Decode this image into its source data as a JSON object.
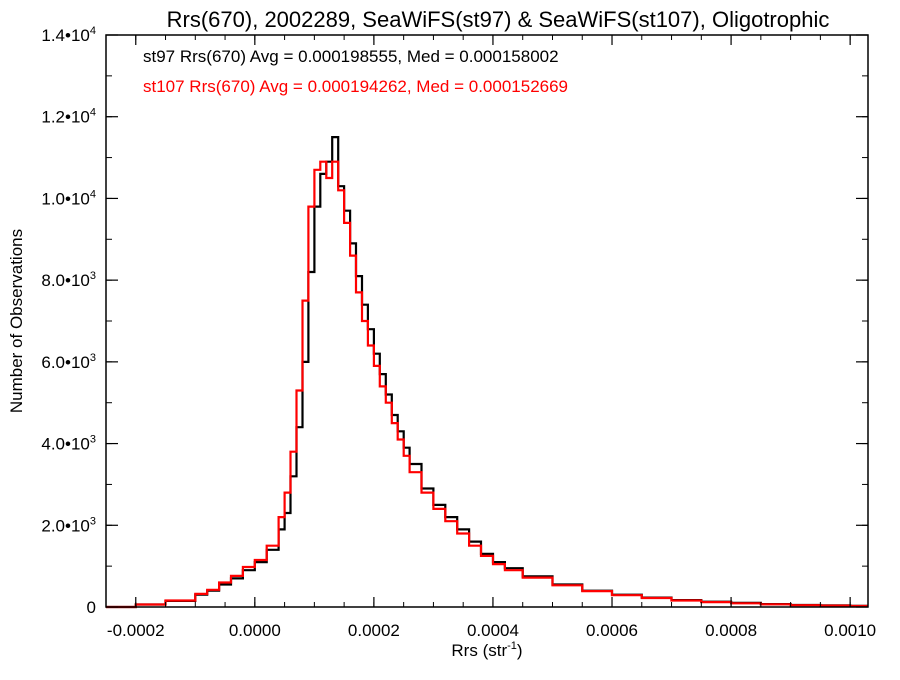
{
  "chart_data": {
    "type": "histogram-step",
    "title": "Rrs(670), 2002289, SeaWiFS(st97) & SeaWiFS(st107), Oligotrophic",
    "xlabel_main": "Rrs (str",
    "xlabel_sup": "-1",
    "xlabel_end": ")",
    "ylabel": "Number of Observations",
    "xlim": [
      -0.00025,
      0.00103
    ],
    "ylim": [
      0,
      14000
    ],
    "x_ticks": [
      {
        "value": -0.0002,
        "label": "-0.0002"
      },
      {
        "value": 0.0,
        "label": "0.0000"
      },
      {
        "value": 0.0002,
        "label": "0.0002"
      },
      {
        "value": 0.0004,
        "label": "0.0004"
      },
      {
        "value": 0.0006,
        "label": "0.0006"
      },
      {
        "value": 0.0008,
        "label": "0.0008"
      },
      {
        "value": 0.001,
        "label": "0.0010"
      }
    ],
    "y_ticks": [
      {
        "value": 0,
        "mantissa": "0",
        "exp": ""
      },
      {
        "value": 2000,
        "mantissa": "2.0•10",
        "exp": "3"
      },
      {
        "value": 4000,
        "mantissa": "4.0•10",
        "exp": "3"
      },
      {
        "value": 6000,
        "mantissa": "6.0•10",
        "exp": "3"
      },
      {
        "value": 8000,
        "mantissa": "8.0•10",
        "exp": "3"
      },
      {
        "value": 10000,
        "mantissa": "1.0•10",
        "exp": "4"
      },
      {
        "value": 12000,
        "mantissa": "1.2•10",
        "exp": "4"
      },
      {
        "value": 14000,
        "mantissa": "1.4•10",
        "exp": "4"
      }
    ],
    "annotations": [
      "st97 Rrs(670) Avg = 0.000198555, Med = 0.000158002",
      "st107 Rrs(670) Avg = 0.000194262, Med = 0.000152669"
    ],
    "series": [
      {
        "name": "st97",
        "color": "#000000",
        "x": [
          -0.00025,
          -0.0002,
          -0.00015,
          -0.0001,
          -8e-05,
          -6e-05,
          -4e-05,
          -2e-05,
          0.0,
          2e-05,
          4e-05,
          5e-05,
          6e-05,
          7e-05,
          8e-05,
          9e-05,
          0.0001,
          0.00011,
          0.00012,
          0.00013,
          0.00014,
          0.00015,
          0.00016,
          0.00017,
          0.00018,
          0.00019,
          0.0002,
          0.00021,
          0.00022,
          0.00023,
          0.00024,
          0.00025,
          0.00026,
          0.00028,
          0.0003,
          0.00032,
          0.00034,
          0.00036,
          0.00038,
          0.0004,
          0.00042,
          0.00045,
          0.0005,
          0.00055,
          0.0006,
          0.00065,
          0.0007,
          0.00075,
          0.0008,
          0.00085,
          0.0009,
          0.00095,
          0.001,
          0.00103
        ],
        "y": [
          0,
          60,
          150,
          300,
          400,
          550,
          700,
          900,
          1100,
          1400,
          1900,
          2300,
          3200,
          4400,
          6000,
          8200,
          9800,
          10600,
          10900,
          11500,
          10300,
          9700,
          8900,
          8100,
          7400,
          6800,
          6200,
          5700,
          5200,
          4700,
          4300,
          3900,
          3500,
          2900,
          2500,
          2200,
          1900,
          1600,
          1300,
          1100,
          950,
          750,
          550,
          400,
          300,
          230,
          170,
          130,
          100,
          70,
          50,
          40,
          30,
          20
        ]
      },
      {
        "name": "st107",
        "color": "#ff0000",
        "x": [
          -0.00025,
          -0.0002,
          -0.00015,
          -0.0001,
          -8e-05,
          -6e-05,
          -4e-05,
          -2e-05,
          0.0,
          2e-05,
          4e-05,
          5e-05,
          6e-05,
          7e-05,
          8e-05,
          9e-05,
          0.0001,
          0.00011,
          0.00012,
          0.00013,
          0.00014,
          0.00015,
          0.00016,
          0.00017,
          0.00018,
          0.00019,
          0.0002,
          0.00021,
          0.00022,
          0.00023,
          0.00024,
          0.00025,
          0.00026,
          0.00028,
          0.0003,
          0.00032,
          0.00034,
          0.00036,
          0.00038,
          0.0004,
          0.00042,
          0.00045,
          0.0005,
          0.00055,
          0.0006,
          0.00065,
          0.0007,
          0.00075,
          0.0008,
          0.00085,
          0.0009,
          0.00095,
          0.001,
          0.00103
        ],
        "y": [
          0,
          60,
          160,
          320,
          420,
          600,
          760,
          980,
          1150,
          1500,
          2200,
          2800,
          3800,
          5300,
          7500,
          9800,
          10700,
          10900,
          10500,
          10900,
          10200,
          9400,
          8600,
          7700,
          7000,
          6400,
          5900,
          5400,
          5000,
          4500,
          4100,
          3700,
          3300,
          2800,
          2400,
          2100,
          1800,
          1500,
          1250,
          1050,
          900,
          720,
          530,
          390,
          290,
          220,
          160,
          120,
          90,
          65,
          45,
          35,
          25,
          15
        ]
      }
    ]
  }
}
